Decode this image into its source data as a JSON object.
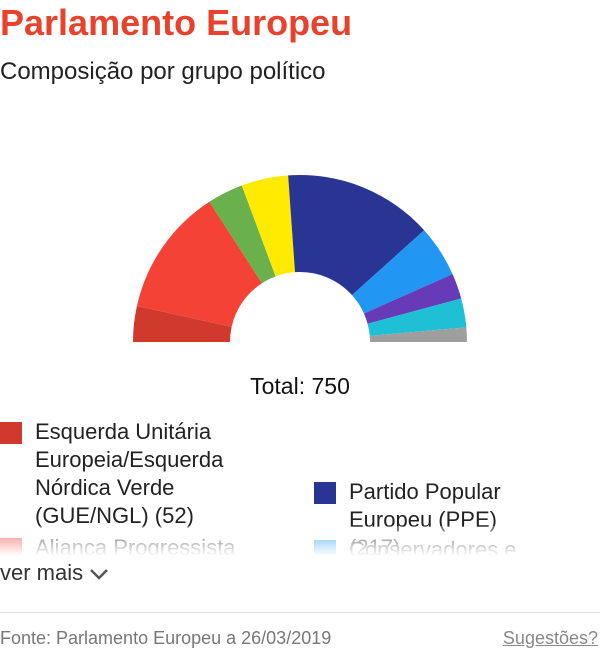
{
  "chart_data": {
    "type": "half-donut",
    "title": "Parlamento Europeu",
    "subtitle": "Composição por grupo político",
    "total_label": "Total: 750",
    "series": [
      {
        "name": "Esquerda Unitária Europeia/Esquerda Nórdica Verde (GUE/NGL) (52)",
        "color": "#d03a2c",
        "value": 52
      },
      {
        "name": "Aliança Progressista",
        "color": "#f44336",
        "value": 186
      },
      {
        "color": "#6ab04c",
        "value": 52
      },
      {
        "color": "#ffea00",
        "value": 68
      },
      {
        "name": "Partido Popular Europeu (PPE) (217)",
        "color": "#283593",
        "value": 217
      },
      {
        "name": "Conservadores e",
        "color": "#2196f3",
        "value": 75
      },
      {
        "color": "#673ab7",
        "value": 37
      },
      {
        "color": "#1fbfd6",
        "value": 42
      },
      {
        "color": "#9e9e9e",
        "value": 21
      }
    ]
  },
  "more_label": "ver mais",
  "footer": {
    "source": "Fonte: Parlamento Europeu a 26/03/2019",
    "link": "Sugestões?"
  }
}
